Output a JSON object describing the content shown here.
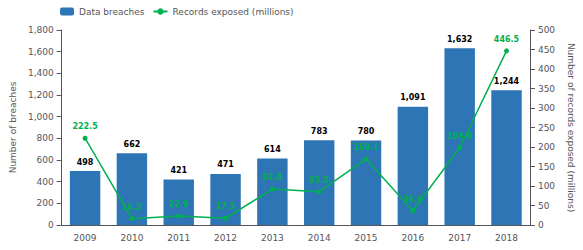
{
  "chart_data": {
    "type": "bar",
    "categories": [
      "2009",
      "2010",
      "2011",
      "2012",
      "2013",
      "2014",
      "2015",
      "2016",
      "2017",
      "2018"
    ],
    "series": [
      {
        "name": "Data breaches",
        "type": "bar",
        "color": "#2E75B6",
        "values": [
          498,
          662,
          421,
          471,
          614,
          783,
          780,
          1091,
          1632,
          1244
        ],
        "value_labels": [
          "498",
          "662",
          "421",
          "471",
          "614",
          "783",
          "780",
          "1,091",
          "1,632",
          "1,244"
        ]
      },
      {
        "name": "Records exposed (millions)",
        "type": "line",
        "color": "#00B050",
        "marker": "circle",
        "axis": "y2",
        "values": [
          222.5,
          16.2,
          22.9,
          17.3,
          92.0,
          85.5,
          169.1,
          36.6,
          198.0,
          446.5
        ],
        "value_labels": [
          "222.5",
          "16.2",
          "22.9",
          "17.3",
          "92.0",
          "85.5",
          "169.1",
          "36.6",
          "198.0",
          "446.5"
        ]
      }
    ],
    "ylabel": "Number of breaches",
    "y2label": "Number of records exposed (millions)",
    "ylim": [
      0,
      1800
    ],
    "yticks": [
      0,
      200,
      400,
      600,
      800,
      {
        "value": 1000,
        "label": "1,000"
      },
      {
        "value": 1200,
        "label": "1,200"
      },
      {
        "value": 1400,
        "label": "1,400"
      },
      {
        "value": 1600,
        "label": "1,600"
      },
      {
        "value": 1800,
        "label": "1,800"
      }
    ],
    "y2lim": [
      0,
      500
    ],
    "y2ticks": [
      0,
      50,
      100,
      150,
      200,
      250,
      300,
      350,
      400,
      450,
      500
    ],
    "grid": false,
    "legend": "upper left",
    "data_labels": true
  }
}
